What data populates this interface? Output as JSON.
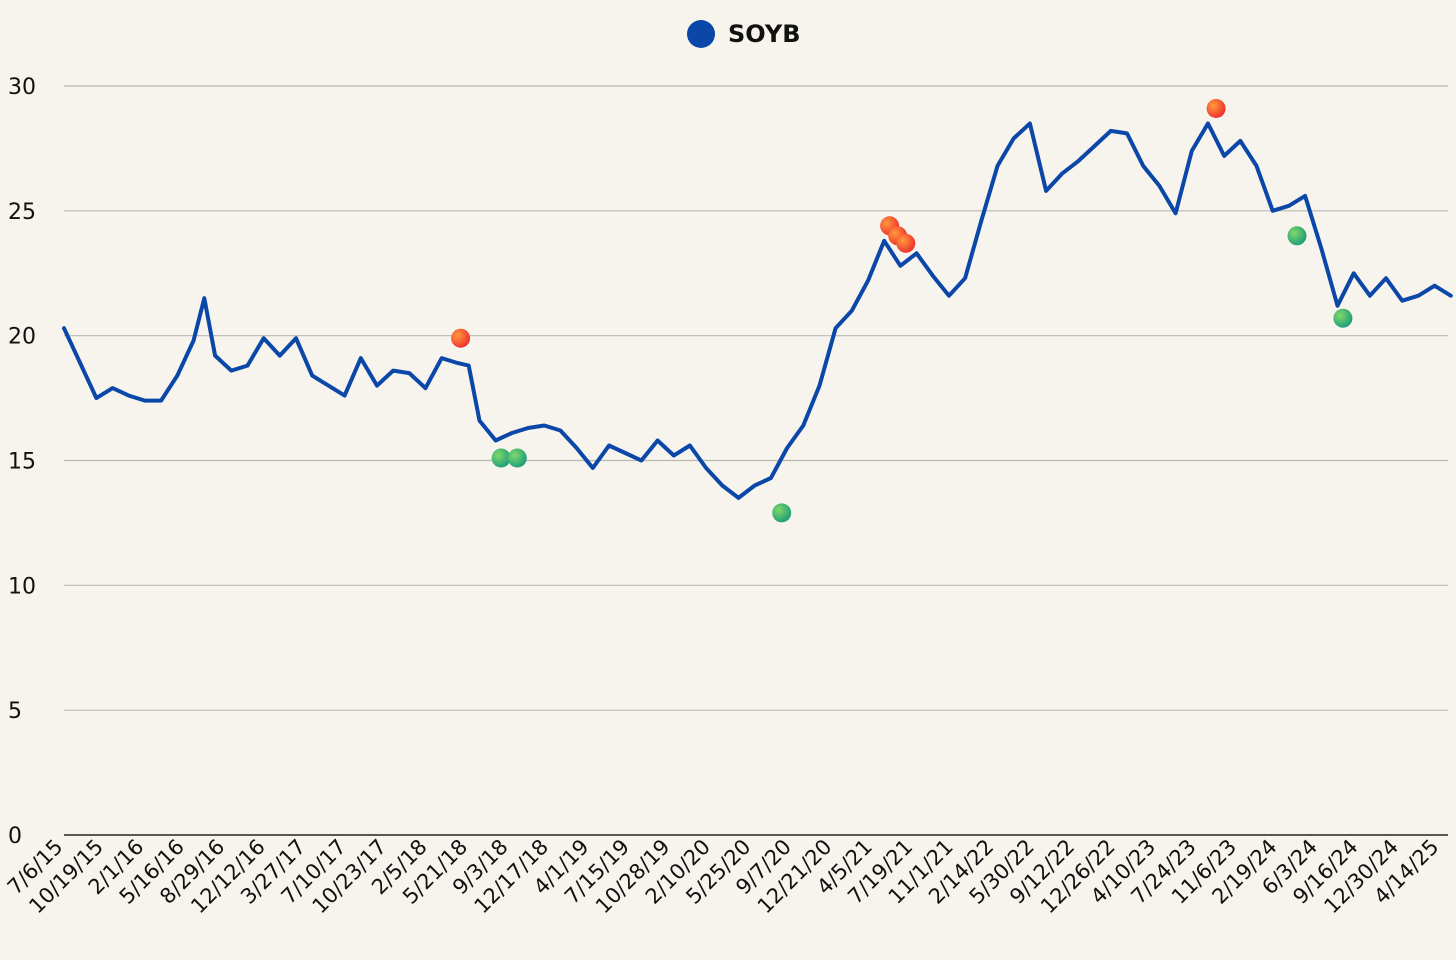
{
  "chart_data": {
    "type": "line",
    "title": "",
    "xlabel": "",
    "ylabel": "",
    "ylim": [
      0,
      30
    ],
    "yticks": [
      "0",
      "5",
      "10",
      "15",
      "20",
      "25",
      "30"
    ],
    "grid": "horizontal",
    "legend": {
      "position": "top-center",
      "entries": [
        "SOYB"
      ]
    },
    "x_tick_labels": [
      "7/6/15",
      "10/19/15",
      "2/1/16",
      "5/16/16",
      "8/29/16",
      "12/12/16",
      "3/27/17",
      "7/10/17",
      "10/23/17",
      "2/5/18",
      "5/21/18",
      "9/3/18",
      "12/17/18",
      "4/1/19",
      "7/15/19",
      "10/28/19",
      "2/10/20",
      "5/25/20",
      "9/7/20",
      "12/21/20",
      "4/5/21",
      "7/19/21",
      "11/1/21",
      "2/14/22",
      "5/30/22",
      "9/12/22",
      "12/26/22",
      "4/10/23",
      "7/24/23",
      "11/6/23",
      "2/19/24",
      "6/3/24",
      "9/16/24",
      "12/30/24",
      "4/14/25"
    ],
    "series": [
      {
        "name": "SOYB",
        "color": "#0b47a8",
        "points": [
          [
            "2015-07-06",
            20.3
          ],
          [
            "2015-08-17",
            18.9
          ],
          [
            "2015-09-28",
            17.5
          ],
          [
            "2015-11-09",
            17.9
          ],
          [
            "2015-12-21",
            17.6
          ],
          [
            "2016-02-01",
            17.4
          ],
          [
            "2016-03-14",
            17.4
          ],
          [
            "2016-04-25",
            18.4
          ],
          [
            "2016-06-06",
            19.8
          ],
          [
            "2016-07-04",
            21.5
          ],
          [
            "2016-08-01",
            19.2
          ],
          [
            "2016-09-12",
            18.6
          ],
          [
            "2016-10-24",
            18.8
          ],
          [
            "2016-12-05",
            19.9
          ],
          [
            "2017-01-16",
            19.2
          ],
          [
            "2017-02-27",
            19.9
          ],
          [
            "2017-04-10",
            18.4
          ],
          [
            "2017-05-22",
            18.0
          ],
          [
            "2017-07-03",
            17.6
          ],
          [
            "2017-08-14",
            19.1
          ],
          [
            "2017-09-25",
            18.0
          ],
          [
            "2017-11-06",
            18.6
          ],
          [
            "2017-12-18",
            18.5
          ],
          [
            "2018-01-29",
            17.9
          ],
          [
            "2018-03-12",
            19.1
          ],
          [
            "2018-04-23",
            18.9
          ],
          [
            "2018-05-21",
            18.8
          ],
          [
            "2018-06-18",
            16.6
          ],
          [
            "2018-07-30",
            15.8
          ],
          [
            "2018-09-10",
            16.1
          ],
          [
            "2018-10-22",
            16.3
          ],
          [
            "2018-12-03",
            16.4
          ],
          [
            "2019-01-14",
            16.2
          ],
          [
            "2019-02-25",
            15.5
          ],
          [
            "2019-04-08",
            14.7
          ],
          [
            "2019-05-20",
            15.6
          ],
          [
            "2019-07-01",
            15.3
          ],
          [
            "2019-08-12",
            15.0
          ],
          [
            "2019-09-23",
            15.8
          ],
          [
            "2019-11-04",
            15.2
          ],
          [
            "2019-12-16",
            15.6
          ],
          [
            "2020-01-27",
            14.7
          ],
          [
            "2020-03-09",
            14.0
          ],
          [
            "2020-04-20",
            13.5
          ],
          [
            "2020-06-01",
            14.0
          ],
          [
            "2020-07-13",
            14.3
          ],
          [
            "2020-08-24",
            15.5
          ],
          [
            "2020-10-05",
            16.4
          ],
          [
            "2020-11-16",
            18.0
          ],
          [
            "2020-12-28",
            20.3
          ],
          [
            "2021-02-08",
            21.0
          ],
          [
            "2021-03-22",
            22.2
          ],
          [
            "2021-05-03",
            23.8
          ],
          [
            "2021-06-14",
            22.8
          ],
          [
            "2021-07-26",
            23.3
          ],
          [
            "2021-09-06",
            22.4
          ],
          [
            "2021-10-18",
            21.6
          ],
          [
            "2021-11-29",
            22.3
          ],
          [
            "2022-01-10",
            24.6
          ],
          [
            "2022-02-21",
            26.8
          ],
          [
            "2022-04-04",
            27.9
          ],
          [
            "2022-05-16",
            28.5
          ],
          [
            "2022-06-27",
            25.8
          ],
          [
            "2022-08-08",
            26.5
          ],
          [
            "2022-09-19",
            27.0
          ],
          [
            "2022-10-31",
            27.6
          ],
          [
            "2022-12-12",
            28.2
          ],
          [
            "2023-01-23",
            28.1
          ],
          [
            "2023-03-06",
            26.8
          ],
          [
            "2023-04-17",
            26.0
          ],
          [
            "2023-05-29",
            24.9
          ],
          [
            "2023-07-10",
            27.4
          ],
          [
            "2023-08-21",
            28.5
          ],
          [
            "2023-10-02",
            27.2
          ],
          [
            "2023-11-13",
            27.8
          ],
          [
            "2023-12-25",
            26.8
          ],
          [
            "2024-02-05",
            25.0
          ],
          [
            "2024-03-18",
            25.2
          ],
          [
            "2024-04-29",
            25.6
          ],
          [
            "2024-06-10",
            23.5
          ],
          [
            "2024-07-22",
            21.2
          ],
          [
            "2024-09-02",
            22.5
          ],
          [
            "2024-10-14",
            21.6
          ],
          [
            "2024-11-25",
            22.3
          ],
          [
            "2025-01-06",
            21.4
          ],
          [
            "2025-02-17",
            21.6
          ],
          [
            "2025-03-31",
            22.0
          ],
          [
            "2025-05-12",
            21.6
          ]
        ]
      }
    ],
    "markers": [
      {
        "date": "2018-04-30",
        "value": 19.9,
        "color": "red"
      },
      {
        "date": "2018-08-13",
        "value": 15.1,
        "color": "green"
      },
      {
        "date": "2018-09-24",
        "value": 15.1,
        "color": "green"
      },
      {
        "date": "2020-08-10",
        "value": 12.9,
        "color": "green"
      },
      {
        "date": "2021-05-17",
        "value": 24.4,
        "color": "red"
      },
      {
        "date": "2021-06-07",
        "value": 24.0,
        "color": "red"
      },
      {
        "date": "2021-06-28",
        "value": 23.7,
        "color": "red"
      },
      {
        "date": "2023-09-11",
        "value": 29.1,
        "color": "red"
      },
      {
        "date": "2024-04-08",
        "value": 24.0,
        "color": "green"
      },
      {
        "date": "2024-08-05",
        "value": 20.7,
        "color": "green"
      }
    ]
  }
}
